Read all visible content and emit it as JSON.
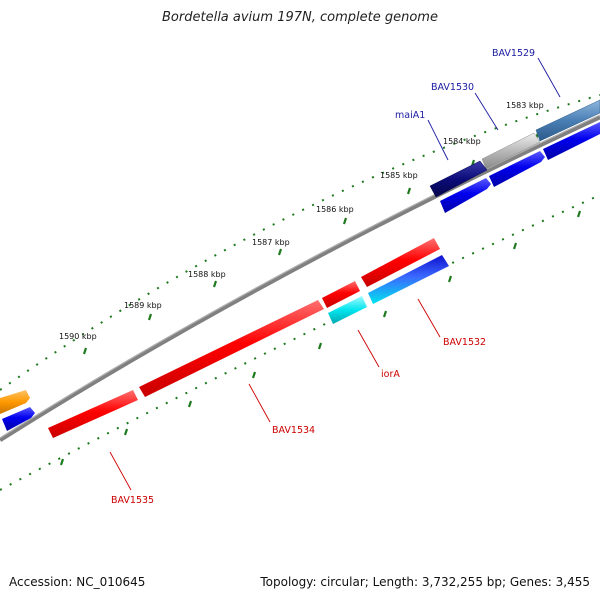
{
  "title": "Bordetella avium 197N, complete genome",
  "footer": {
    "accession": "Accession: NC_010645",
    "stats": "Topology: circular; Length: 3,732,255 bp; Genes: 3,455"
  },
  "scale_labels": [
    "1583 kbp",
    "1584 kbp",
    "1585 kbp",
    "1586 kbp",
    "1587 kbp",
    "1588 kbp",
    "1589 kbp",
    "1590 kbp"
  ],
  "genes": {
    "bav1529": {
      "label": "BAV1529",
      "color": "#4a7fb5"
    },
    "bav1530": {
      "label": "BAV1530",
      "color": "#b8b8b8"
    },
    "maia1": {
      "label": "maiA1",
      "color": "#0c0c7a"
    },
    "bav1532": {
      "label": "BAV1532",
      "color": "#ff0000"
    },
    "iora": {
      "label": "iorA",
      "color": "#ff0000"
    },
    "bav1534": {
      "label": "BAV1534",
      "color": "#ff0000"
    },
    "bav1535": {
      "label": "BAV1535",
      "color": "#ff0000"
    }
  },
  "colors": {
    "backbone": "#808080",
    "tick": "#1f7a1f",
    "forward_label": "#1a1aa0",
    "reverse_label": "#cc0000",
    "blue_feature": "#0000ee",
    "cyan_feature": "#00e5ee",
    "orange_feature": "#ff9900"
  }
}
